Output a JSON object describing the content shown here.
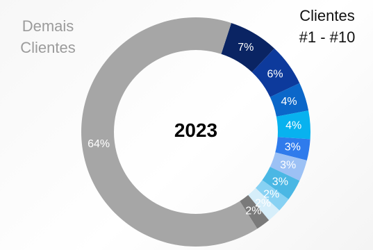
{
  "chart_data": {
    "type": "pie",
    "center_label": "2023",
    "group_labels": {
      "others": [
        "Demais",
        "Clientes"
      ],
      "top10": [
        "Clientes",
        "#1 - #10"
      ]
    },
    "slices": [
      {
        "value": 7,
        "label": "7%",
        "color": "#0a2463",
        "label_color": "#ffffff"
      },
      {
        "value": 6,
        "label": "6%",
        "color": "#0d3a9c",
        "label_color": "#ffffff"
      },
      {
        "value": 4,
        "label": "4%",
        "color": "#0b67c9",
        "label_color": "#ffffff"
      },
      {
        "value": 4,
        "label": "4%",
        "color": "#08b2ef",
        "label_color": "#ffffff"
      },
      {
        "value": 3,
        "label": "3%",
        "color": "#2f7bec",
        "label_color": "#ffffff"
      },
      {
        "value": 3,
        "label": "3%",
        "color": "#9cc1f5",
        "label_color": "#ffffff"
      },
      {
        "value": 3,
        "label": "3%",
        "color": "#4ab7e4",
        "label_color": "#ffffff"
      },
      {
        "value": 2,
        "label": "2%",
        "color": "#87d1f3",
        "label_color": "#ffffff"
      },
      {
        "value": 2,
        "label": "2%",
        "color": "#d6eefa",
        "label_color": "#ffffff"
      },
      {
        "value": 2,
        "label": "2%",
        "color": "#7a7a7a",
        "label_color": "#ffffff"
      },
      {
        "value": 64,
        "label": "64%",
        "color": "#a6a6a6",
        "label_color": "#ffffff"
      }
    ]
  }
}
